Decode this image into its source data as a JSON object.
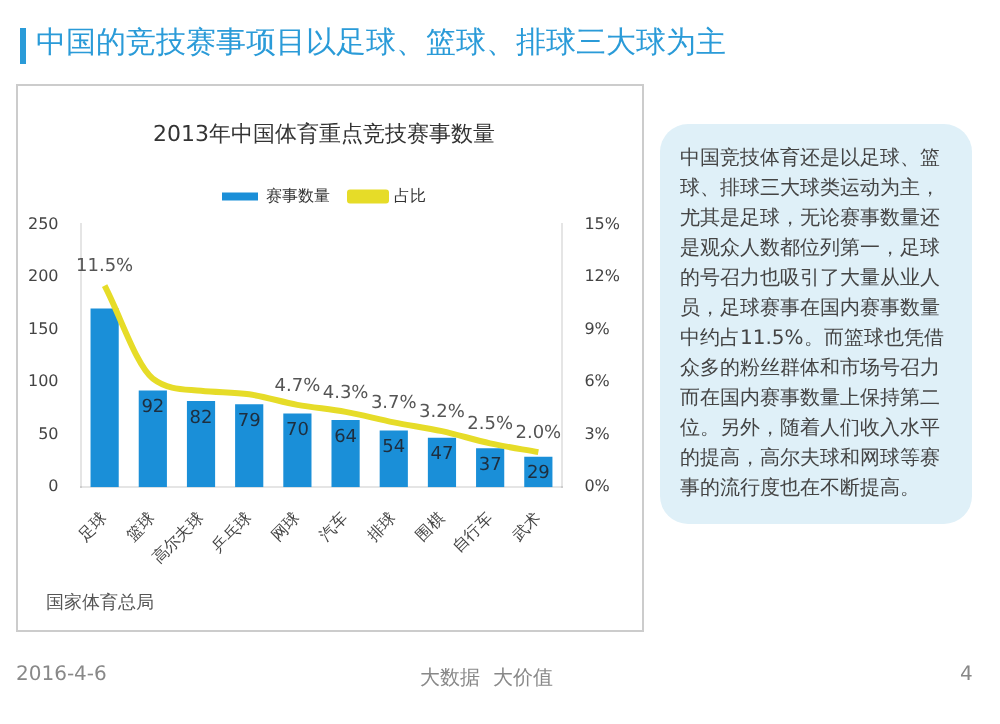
{
  "chart_data": {
    "type": "bar",
    "title": "2013年中国体育重点竞技赛事数量",
    "annotations": [
      "中国的竞技赛事项目以足球、篮球、排球三大球为主",
      "中国竞技体育还是以足球、篮球、排球三大球类运动为主，尤其是足球，无论赛事数量还是观众人数都位列第一，足球的号召力也吸引了大量从业人员，足球赛事在国内赛事数量中约占11.5%。而篮球也凭借众多的粉丝群体和市场号召力而在国内赛事数量上保持第二位。另外，随着人们收入水平的提高，高尔夫球和网球等赛事的流行度也在不断提高。",
      "国家体育总局",
      "2016-4-6",
      "大数据  大价值",
      "4"
    ],
    "categories": [
      "足球",
      "篮球",
      "高尔夫球",
      "乒乓球",
      "网球",
      "汽车",
      "排球",
      "围棋",
      "自行车",
      "武术"
    ],
    "series": [
      {
        "name": "赛事数量",
        "color": "#1a8fd8",
        "values": [
          170,
          92,
          82,
          79,
          70,
          64,
          54,
          47,
          37,
          29
        ],
        "value_labels": [
          null,
          "92",
          "82",
          "79",
          "70",
          "64",
          "54",
          "47",
          "37",
          "29"
        ]
      },
      {
        "name": "占比",
        "type": "line",
        "axis": "y2",
        "color": "#e6dc28",
        "values": [
          11.5,
          6.2,
          5.5,
          5.3,
          4.7,
          4.3,
          3.7,
          3.2,
          2.5,
          2.0
        ],
        "value_labels": [
          "11.5%",
          null,
          null,
          null,
          "4.7%",
          "4.3%",
          "3.7%",
          "3.2%",
          "2.5%",
          "2.0%"
        ]
      }
    ],
    "ylim": [
      0,
      250
    ],
    "yticks": [
      0,
      50,
      100,
      150,
      200,
      250
    ],
    "y2lim": [
      0,
      15
    ],
    "y2ticks": [
      {
        "value": 0,
        "label": "0%"
      },
      {
        "value": 3,
        "label": "3%"
      },
      {
        "value": 6,
        "label": "6%"
      },
      {
        "value": 9,
        "label": "9%"
      },
      {
        "value": 12,
        "label": "12%"
      },
      {
        "value": 15,
        "label": "15%"
      }
    ],
    "legend": "top",
    "grid": false,
    "marker": "none"
  }
}
